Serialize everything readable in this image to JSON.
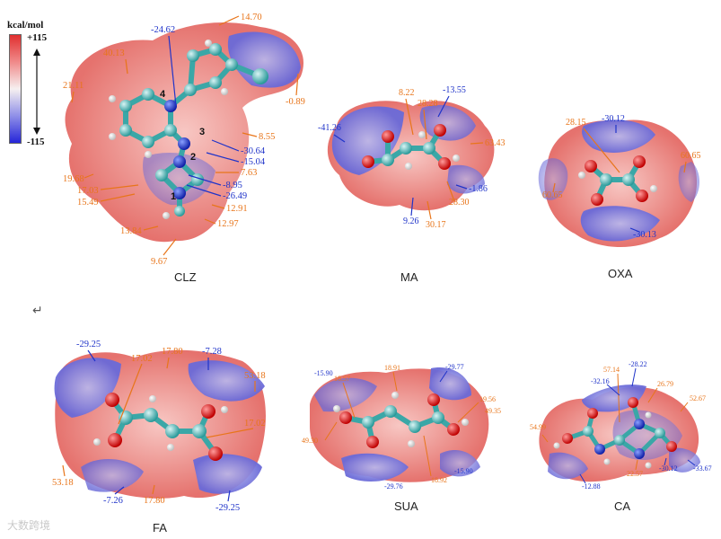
{
  "colorbar": {
    "unit": "kcal/mol",
    "max": "+115",
    "min": "-115"
  },
  "return_mark": "↵",
  "watermark": "大数跨境",
  "colors": {
    "positive": "#e8524f",
    "negative": "#5b5bd6",
    "orange_label": "#e8751a",
    "blue_label": "#1f33c9"
  },
  "molecules": [
    {
      "id": "CLZ",
      "label": "CLZ",
      "values": [
        "-24.62",
        "14.70",
        "40.13",
        "21.11",
        "-0.89",
        "8.55",
        "-30.64",
        "-15.04",
        "7.63",
        "-8.95",
        "-26.49",
        "12.91",
        "12.97",
        "19.68",
        "17.03",
        "15.49",
        "13.84",
        "9.67"
      ],
      "atom_numbers": [
        "4",
        "3",
        "2",
        "1"
      ]
    },
    {
      "id": "MA",
      "label": "MA",
      "values": [
        "8.22",
        "-13.55",
        "28.28",
        "-41.26",
        "63.43",
        "-1.86",
        "28.30",
        "9.26",
        "30.17"
      ]
    },
    {
      "id": "OXA",
      "label": "OXA",
      "values": [
        "28.15",
        "-30.12",
        "60.65",
        "60.65",
        "-30.13"
      ]
    },
    {
      "id": "FA",
      "label": "FA",
      "values": [
        "-29.25",
        "17.02",
        "17.80",
        "-7.28",
        "53.18",
        "17.02",
        "53.18",
        "-7.26",
        "17.80",
        "-29.25"
      ]
    },
    {
      "id": "SUA",
      "label": "SUA",
      "values": [
        "-15.90",
        "18.57",
        "18.91",
        "-29.77",
        "19.56",
        "49.35",
        "49.30",
        "-29.76",
        "18.92",
        "-15.90"
      ]
    },
    {
      "id": "CA",
      "label": "CA",
      "values": [
        "57.14",
        "-28.22",
        "-32.16",
        "26.79",
        "52.67",
        "54.99",
        "22.57",
        "-30.12",
        "-33.67",
        "-12.88"
      ]
    }
  ]
}
